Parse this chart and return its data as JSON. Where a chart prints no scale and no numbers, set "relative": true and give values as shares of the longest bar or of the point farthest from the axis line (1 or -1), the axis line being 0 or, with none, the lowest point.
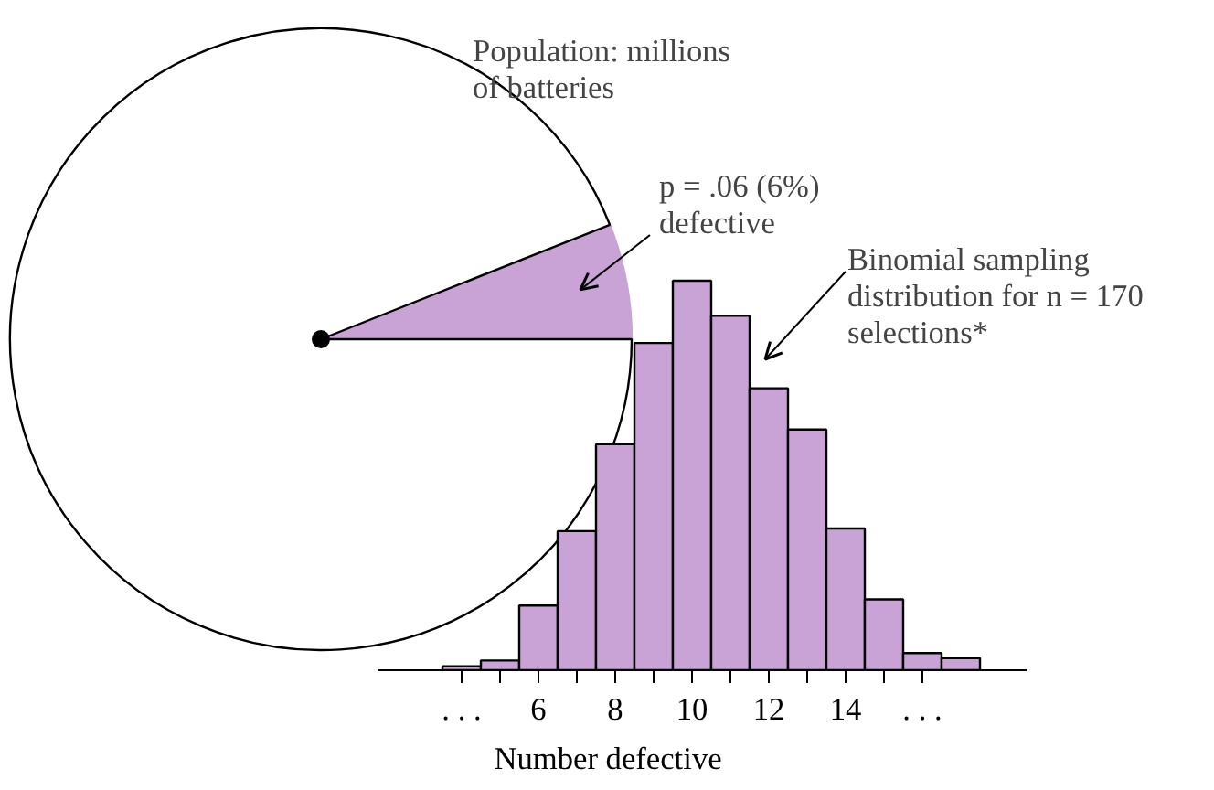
{
  "chart_data": [
    {
      "type": "pie",
      "title": "Population: millions of batteries",
      "categories": [
        "p = .06 (6%) defective",
        null
      ],
      "values": [
        6,
        94
      ],
      "colors": [
        "#c9a3d6",
        "#ffffff"
      ]
    },
    {
      "type": "bar",
      "annotations": [
        "Binomial sampling distribution for n = 170 selections*"
      ],
      "xlabel": "Number defective",
      "relative": true,
      "color": "#c9a3d6",
      "x": [
        4,
        5,
        6,
        7,
        8,
        9,
        10,
        11,
        12,
        13,
        14,
        15,
        16,
        17
      ],
      "values": [
        0.01,
        0.025,
        0.166,
        0.357,
        0.58,
        0.84,
        1,
        0.91,
        0.724,
        0.618,
        0.364,
        0.182,
        0.044,
        0.031
      ],
      "xlim": [
        1.8,
        18.7
      ],
      "xticks": [
        {
          "value": 4,
          "label": ". . ."
        },
        {
          "value": 5,
          "label": null
        },
        6,
        {
          "value": 7,
          "label": null
        },
        8,
        {
          "value": 9,
          "label": null
        },
        10,
        {
          "value": 11,
          "label": null
        },
        12,
        {
          "value": 13,
          "label": null
        },
        14,
        {
          "value": 15,
          "label": null
        },
        {
          "value": 16,
          "label": ". . ."
        }
      ]
    }
  ]
}
